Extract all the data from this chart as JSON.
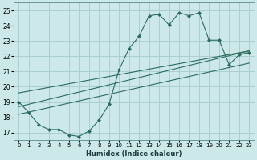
{
  "title": "",
  "xlabel": "Humidex (Indice chaleur)",
  "bg_color": "#cce8e8",
  "grid_color": "#aacece",
  "line_color": "#2a6b5e",
  "xlim": [
    -0.5,
    23.5
  ],
  "ylim": [
    16.5,
    25.5
  ],
  "xticks": [
    0,
    1,
    2,
    3,
    4,
    5,
    6,
    7,
    8,
    9,
    10,
    11,
    12,
    13,
    14,
    15,
    16,
    17,
    18,
    19,
    20,
    21,
    22,
    23
  ],
  "yticks": [
    17,
    18,
    19,
    20,
    21,
    22,
    23,
    24,
    25
  ],
  "main_x": [
    0,
    1,
    2,
    3,
    4,
    5,
    6,
    7,
    8,
    9,
    10,
    11,
    12,
    13,
    14,
    15,
    16,
    17,
    18,
    19,
    20,
    21,
    22,
    23
  ],
  "main_y": [
    19.0,
    18.3,
    17.5,
    17.2,
    17.2,
    16.85,
    16.75,
    17.1,
    17.8,
    18.85,
    21.1,
    22.5,
    23.3,
    24.65,
    24.75,
    24.05,
    24.85,
    24.65,
    24.85,
    23.05,
    23.05,
    21.45,
    22.1,
    22.25
  ],
  "trend1_x": [
    0,
    23
  ],
  "trend1_y": [
    18.7,
    22.35
  ],
  "trend2_x": [
    0,
    23
  ],
  "trend2_y": [
    19.6,
    22.35
  ],
  "trend3_x": [
    0,
    23
  ],
  "trend3_y": [
    18.2,
    21.55
  ]
}
